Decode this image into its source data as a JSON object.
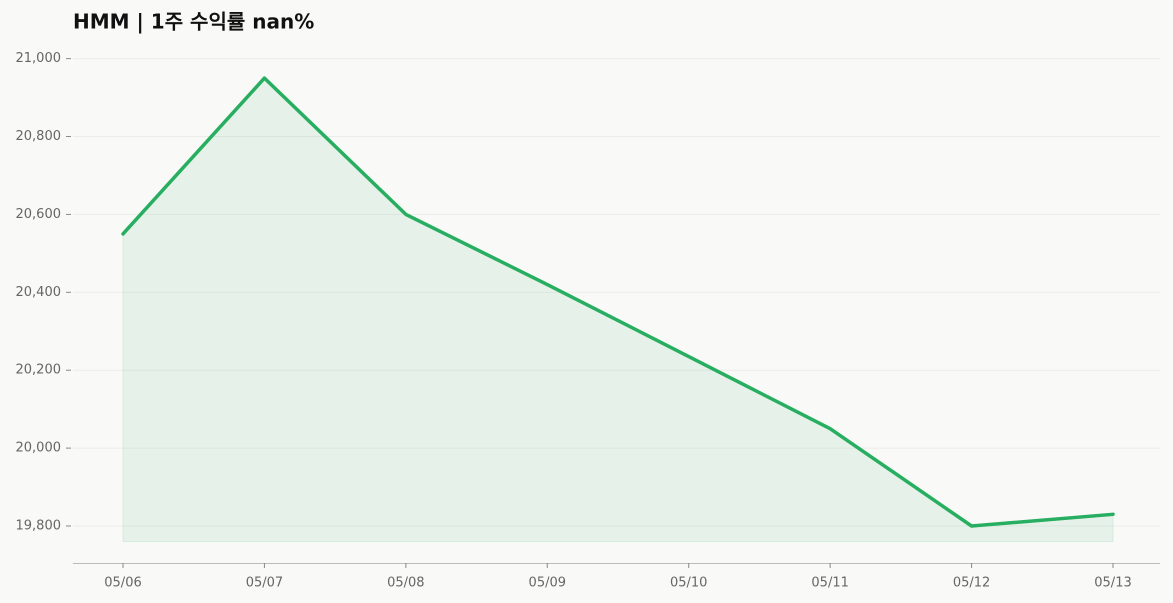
{
  "chart_data": {
    "type": "line",
    "title": "HMM  |  1주 수익률  nan%",
    "categories": [
      "05/06",
      "05/07",
      "05/08",
      "05/09",
      "05/10",
      "05/11",
      "05/12",
      "05/13"
    ],
    "series": [
      {
        "color": "#27ae60",
        "values": [
          20550,
          20950,
          20600,
          20420,
          20235,
          20050,
          19800,
          19830
        ]
      }
    ],
    "area_base": 19760,
    "ylim": [
      19705,
      21035
    ],
    "yticks": [
      {
        "value": 19800,
        "label": "19,800"
      },
      {
        "value": 20000,
        "label": "20,000"
      },
      {
        "value": 20200,
        "label": "20,200"
      },
      {
        "value": 20400,
        "label": "20,400"
      },
      {
        "value": 20600,
        "label": "20,600"
      },
      {
        "value": 20800,
        "label": "20,800"
      },
      {
        "value": 21000,
        "label": "21,000"
      }
    ],
    "grid": true
  }
}
